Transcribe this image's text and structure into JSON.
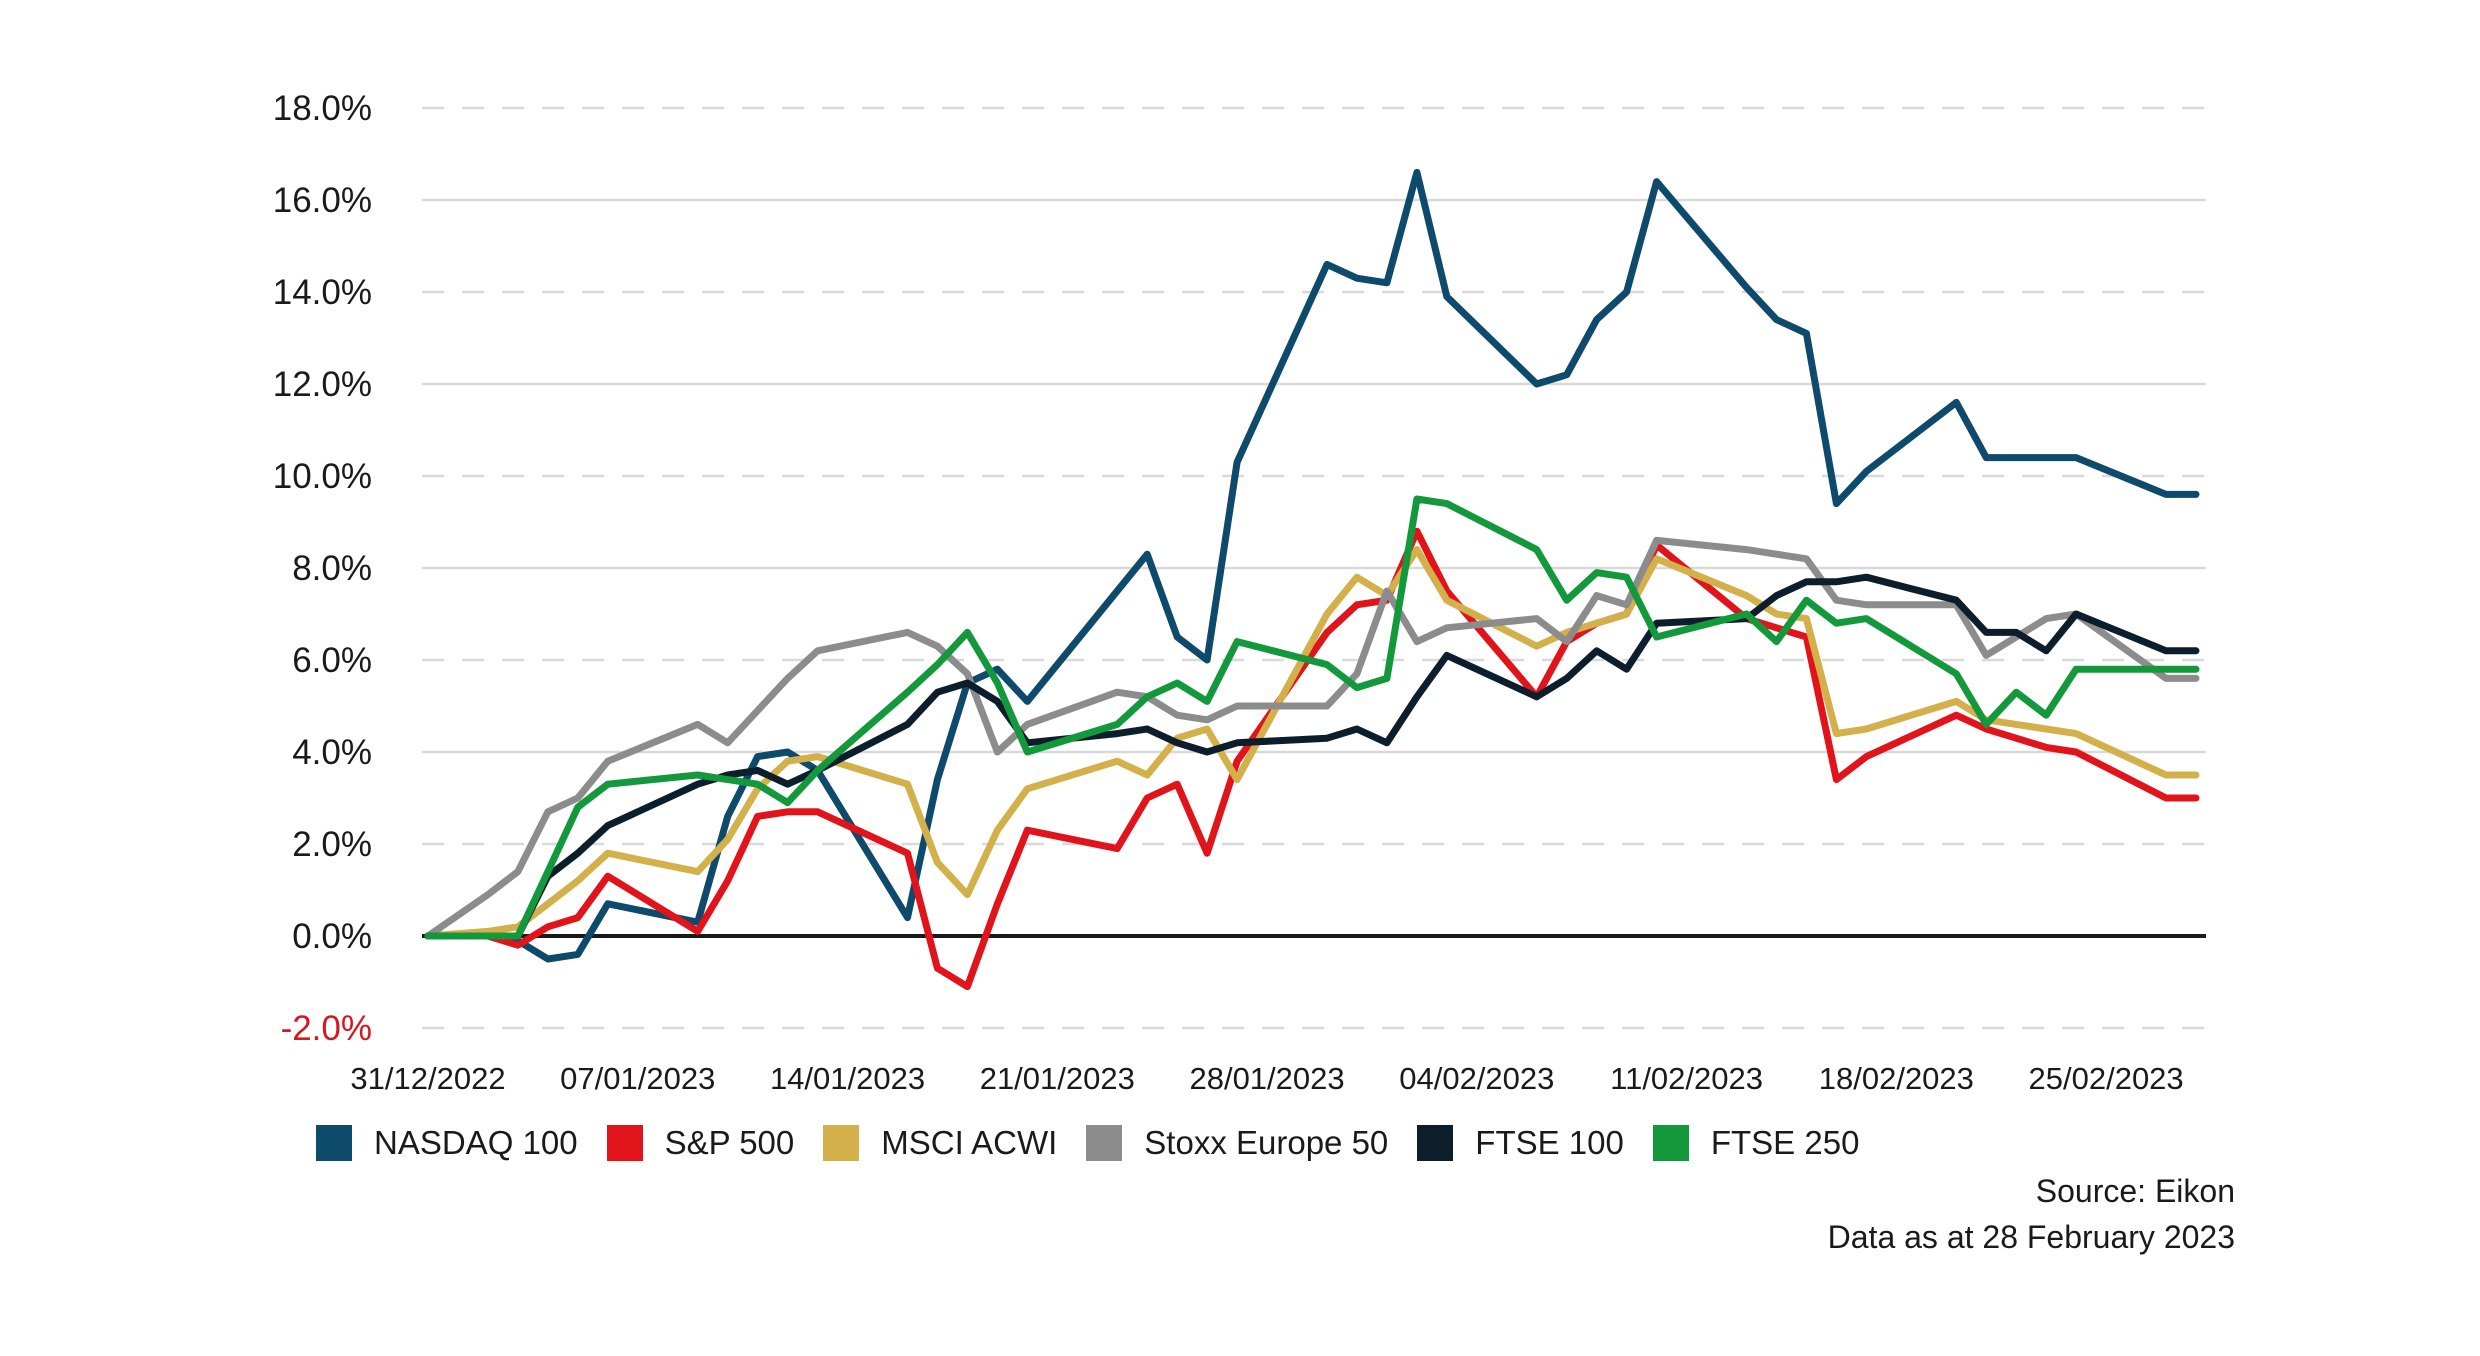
{
  "chart_data": {
    "type": "line",
    "title": "",
    "xlabel": "",
    "ylabel": "",
    "ylim": [
      -2.0,
      18.0
    ],
    "yticks": [
      "18.0%",
      "16.0%",
      "14.0%",
      "12.0%",
      "10.0%",
      "8.0%",
      "6.0%",
      "4.0%",
      "2.0%",
      "0.0%",
      "-2.0%"
    ],
    "xticks": [
      "31/12/2022",
      "07/01/2023",
      "14/01/2023",
      "21/01/2023",
      "28/01/2023",
      "04/02/2023",
      "11/02/2023",
      "18/02/2023",
      "25/02/2023"
    ],
    "x": [
      "31/12/2022",
      "02/01/2023",
      "03/01/2023",
      "04/01/2023",
      "05/01/2023",
      "06/01/2023",
      "09/01/2023",
      "10/01/2023",
      "11/01/2023",
      "12/01/2023",
      "13/01/2023",
      "16/01/2023",
      "17/01/2023",
      "18/01/2023",
      "19/01/2023",
      "20/01/2023",
      "23/01/2023",
      "24/01/2023",
      "25/01/2023",
      "26/01/2023",
      "27/01/2023",
      "30/01/2023",
      "31/01/2023",
      "01/02/2023",
      "02/02/2023",
      "03/02/2023",
      "06/02/2023",
      "07/02/2023",
      "08/02/2023",
      "09/02/2023",
      "10/02/2023",
      "13/02/2023",
      "14/02/2023",
      "15/02/2023",
      "16/02/2023",
      "17/02/2023",
      "20/02/2023",
      "21/02/2023",
      "22/02/2023",
      "23/02/2023",
      "24/02/2023",
      "27/02/2023",
      "28/02/2023"
    ],
    "series": [
      {
        "name": "NASDAQ 100",
        "color": "#0d4a6b",
        "values": [
          0.0,
          0.0,
          -0.1,
          -0.5,
          -0.4,
          0.7,
          0.3,
          2.6,
          3.9,
          4.0,
          3.6,
          0.4,
          3.4,
          5.5,
          5.8,
          5.1,
          7.5,
          8.3,
          6.5,
          6.0,
          10.3,
          14.6,
          14.3,
          14.2,
          16.6,
          13.9,
          12.0,
          12.2,
          13.4,
          14.0,
          16.4,
          14.1,
          13.4,
          13.1,
          9.4,
          10.1,
          11.6,
          10.4,
          10.4,
          10.4,
          10.4,
          9.6,
          9.6
        ]
      },
      {
        "name": "S&P 500",
        "color": "#e1141b",
        "values": [
          0.0,
          0.0,
          -0.2,
          0.2,
          0.4,
          1.3,
          0.1,
          1.2,
          2.6,
          2.7,
          2.7,
          1.8,
          -0.7,
          -1.1,
          0.7,
          2.3,
          1.9,
          3.0,
          3.3,
          1.8,
          3.8,
          6.6,
          7.2,
          7.3,
          8.8,
          7.5,
          5.2,
          6.4,
          6.8,
          7.0,
          8.5,
          6.9,
          6.7,
          6.5,
          3.4,
          3.9,
          4.8,
          4.5,
          4.3,
          4.1,
          4.0,
          3.0,
          3.0
        ]
      },
      {
        "name": "MSCI ACWI",
        "color": "#d4b04a",
        "values": [
          0.0,
          0.1,
          0.2,
          0.7,
          1.2,
          1.8,
          1.4,
          2.1,
          3.2,
          3.8,
          3.9,
          3.3,
          1.6,
          0.9,
          2.3,
          3.2,
          3.8,
          3.5,
          4.3,
          4.5,
          3.4,
          7.0,
          7.8,
          7.4,
          8.4,
          7.3,
          6.3,
          6.6,
          6.8,
          7.0,
          8.2,
          7.4,
          7.0,
          6.9,
          4.4,
          4.5,
          5.1,
          4.7,
          4.6,
          4.5,
          4.4,
          3.5,
          3.5
        ]
      },
      {
        "name": "Stoxx Europe 50",
        "color": "#8c8c8c",
        "values": [
          0.0,
          0.9,
          1.4,
          2.7,
          3.0,
          3.8,
          4.6,
          4.2,
          4.9,
          5.6,
          6.2,
          6.6,
          6.3,
          5.7,
          4.0,
          4.6,
          5.3,
          5.2,
          4.8,
          4.7,
          5.0,
          5.0,
          5.7,
          7.5,
          6.4,
          6.7,
          6.9,
          6.4,
          7.4,
          7.2,
          8.6,
          8.4,
          8.3,
          8.2,
          7.3,
          7.2,
          7.2,
          6.1,
          6.5,
          6.9,
          7.0,
          5.6,
          5.6
        ]
      },
      {
        "name": "FTSE 100",
        "color": "#0c1e2b",
        "values": [
          0.0,
          0.0,
          0.0,
          1.3,
          1.8,
          2.4,
          3.3,
          3.5,
          3.6,
          3.3,
          3.6,
          4.6,
          5.3,
          5.5,
          5.1,
          4.2,
          4.4,
          4.5,
          4.2,
          4.0,
          4.2,
          4.3,
          4.5,
          4.2,
          5.2,
          6.1,
          5.2,
          5.6,
          6.2,
          5.8,
          6.8,
          6.9,
          7.4,
          7.7,
          7.7,
          7.8,
          7.3,
          6.6,
          6.6,
          6.2,
          7.0,
          6.2,
          6.2
        ]
      },
      {
        "name": "FTSE 250",
        "color": "#13993c",
        "values": [
          0.0,
          0.0,
          0.0,
          1.4,
          2.8,
          3.3,
          3.5,
          3.4,
          3.3,
          2.9,
          3.6,
          5.3,
          5.9,
          6.6,
          5.5,
          4.0,
          4.6,
          5.2,
          5.5,
          5.1,
          6.4,
          5.9,
          5.4,
          5.6,
          9.5,
          9.4,
          8.4,
          7.3,
          7.9,
          7.8,
          6.5,
          7.0,
          6.4,
          7.3,
          6.8,
          6.9,
          5.7,
          4.6,
          5.3,
          4.8,
          5.8,
          5.8,
          5.8
        ]
      }
    ],
    "grid": true,
    "legend": "bottom"
  },
  "legend": [
    {
      "label": "NASDAQ 100",
      "color": "#0d4a6b"
    },
    {
      "label": "S&P 500",
      "color": "#e1141b"
    },
    {
      "label": "MSCI ACWI",
      "color": "#d4b04a"
    },
    {
      "label": "Stoxx Europe 50",
      "color": "#8c8c8c"
    },
    {
      "label": "FTSE 100",
      "color": "#0c1e2b"
    },
    {
      "label": "FTSE 250",
      "color": "#13993c"
    }
  ],
  "source": {
    "line1": "Source: Eikon",
    "line2": "Data as at 28 February 2023"
  }
}
